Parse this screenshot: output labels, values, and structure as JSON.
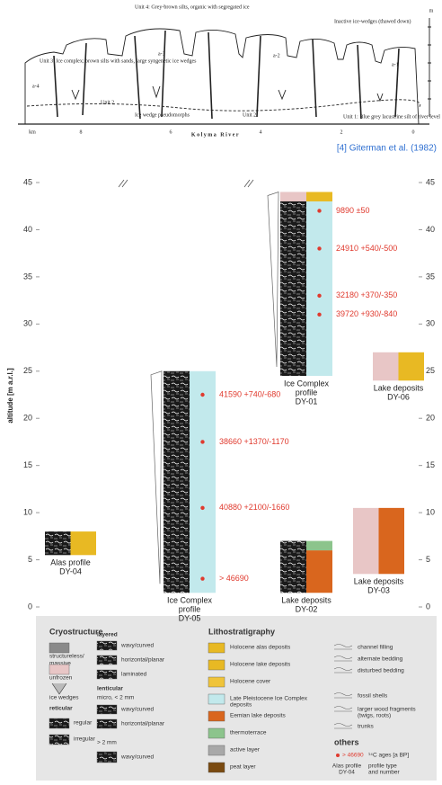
{
  "sketch": {
    "labels": [
      "Unit 4: Grey-brown silts, organic with segregated ice",
      "Inactive ice-wedges (thawed down)",
      "Unit 3: Ice complex; brown silts with sands, large syngenetic ice wedges",
      "Unit 2",
      "Unit 2",
      "Ice wedge pseudomorphs",
      "Unit 1: Blue grey lacustrine silt of river level",
      "Kolyma River",
      "km",
      "8",
      "6",
      "4",
      "2",
      "0",
      "m",
      "a-4",
      "a-3",
      "a-2",
      "a-1"
    ],
    "caption": "[4] Giterman et al. (1982)"
  },
  "chart_data": {
    "type": "stratigraphic-columns",
    "y_label": "altitude [m a.r.l.]",
    "ylim": [
      0,
      45
    ],
    "yticks": [
      0,
      5,
      10,
      15,
      20,
      25,
      30,
      35,
      40,
      45
    ],
    "profiles": [
      {
        "label_lines": [
          "Alas profile",
          "DY-04"
        ],
        "bottom": 5.5,
        "top": 8,
        "layers": [
          {
            "bottom": 5.5,
            "top": 8,
            "color": "#e8b923"
          }
        ],
        "ages": []
      },
      {
        "label_lines": [
          "Ice Complex",
          "profile",
          "DY-05"
        ],
        "bottom": 1.5,
        "top": 25,
        "layers": [
          {
            "bottom": 1.5,
            "top": 25,
            "color": "#c2e9ec"
          }
        ],
        "ages": [
          {
            "altitude": 22.5,
            "label": "41590 +740/-680"
          },
          {
            "altitude": 17.5,
            "label": "38660 +1370/-1170"
          },
          {
            "altitude": 10.5,
            "label": "40880 +2100/-1660"
          },
          {
            "altitude": 3,
            "label": "> 46690"
          }
        ]
      },
      {
        "label_lines": [
          "Ice Complex",
          "profile",
          "DY-01"
        ],
        "bottom": 24.5,
        "top": 44,
        "layers": [
          {
            "bottom": 24.5,
            "top": 43,
            "color": "#c2e9ec"
          },
          {
            "bottom": 43,
            "top": 44,
            "color": "#e8b923"
          }
        ],
        "ages": [
          {
            "altitude": 42,
            "label": "9890 ±50"
          },
          {
            "altitude": 38,
            "label": "24910 +540/-500"
          },
          {
            "altitude": 33,
            "label": "32180 +370/-350"
          },
          {
            "altitude": 31,
            "label": "39720 +930/-840"
          }
        ]
      },
      {
        "label_lines": [
          "Lake deposits",
          "DY-06"
        ],
        "bottom": 24,
        "top": 27,
        "layers": [
          {
            "bottom": 24,
            "top": 27,
            "color": "#e8b923"
          }
        ],
        "ages": []
      },
      {
        "label_lines": [
          "Lake deposits",
          "DY-03"
        ],
        "bottom": 3.5,
        "top": 10.5,
        "layers": [
          {
            "bottom": 3.5,
            "top": 10.5,
            "color": "#d9661e"
          }
        ],
        "ages": []
      },
      {
        "label_lines": [
          "Lake deposits",
          "DY-02"
        ],
        "bottom": 1.5,
        "top": 7,
        "layers": [
          {
            "bottom": 1.5,
            "top": 6,
            "color": "#d9661e"
          },
          {
            "bottom": 6,
            "top": 7,
            "color": "#8cc48c"
          }
        ],
        "ages": []
      }
    ]
  },
  "legend": {
    "cryostructure": {
      "title": "Cryostructure",
      "items": [
        [
          "structureless/",
          "massive"
        ],
        [
          "unfrozen"
        ],
        [
          "ice wedges"
        ]
      ],
      "reticular": {
        "title": "reticular",
        "items": [
          "regular",
          "irregular"
        ]
      },
      "layered": {
        "title": "layered",
        "items": [
          "wavy/curved",
          "horizontal/planar",
          "laminated"
        ]
      },
      "lenticular": {
        "title": "lenticular",
        "micro": "micro, < 2 mm",
        "micro_items": [
          "wavy/curved",
          "horizontal/planar"
        ],
        "macro": "> 2 mm",
        "macro_items": [
          "wavy/curved"
        ]
      }
    },
    "lithostratigraphy": {
      "title": "Lithostratigraphy",
      "items": [
        {
          "label": [
            "Holocene alas deposits"
          ],
          "color": "#e8b923"
        },
        {
          "label": [
            "Holocene lake deposits"
          ],
          "color": "#e8b923"
        },
        {
          "label": [
            "Holocene cover"
          ],
          "color": "#f0c43a"
        },
        {
          "label": [
            "Late Pleistocene Ice Complex",
            "deposits"
          ],
          "color": "#c2e9ec"
        },
        {
          "label": [
            "Eemian lake deposits"
          ],
          "color": "#d9661e"
        },
        {
          "label": [
            "thermoterrace"
          ],
          "color": "#8cc48c"
        },
        {
          "label": [
            "active layer"
          ],
          "color": "#a8a8a8"
        },
        {
          "label": [
            "peat layer"
          ],
          "color": "#7a4a10"
        }
      ]
    },
    "structures": [
      [
        "channel filling"
      ],
      [
        "alternate bedding"
      ],
      [
        "disturbed bedding"
      ],
      [
        "fossil shells"
      ],
      [
        "larger wood fragments",
        "(twigs, roots)"
      ],
      [
        "trunks"
      ]
    ],
    "others": {
      "title": "others",
      "age_example": "> 46690",
      "age_label": "¹⁴C ages [a BP]",
      "profile_example": [
        "Alas profile",
        "DY-04"
      ],
      "profile_label": [
        "profile type",
        "and number"
      ]
    }
  }
}
